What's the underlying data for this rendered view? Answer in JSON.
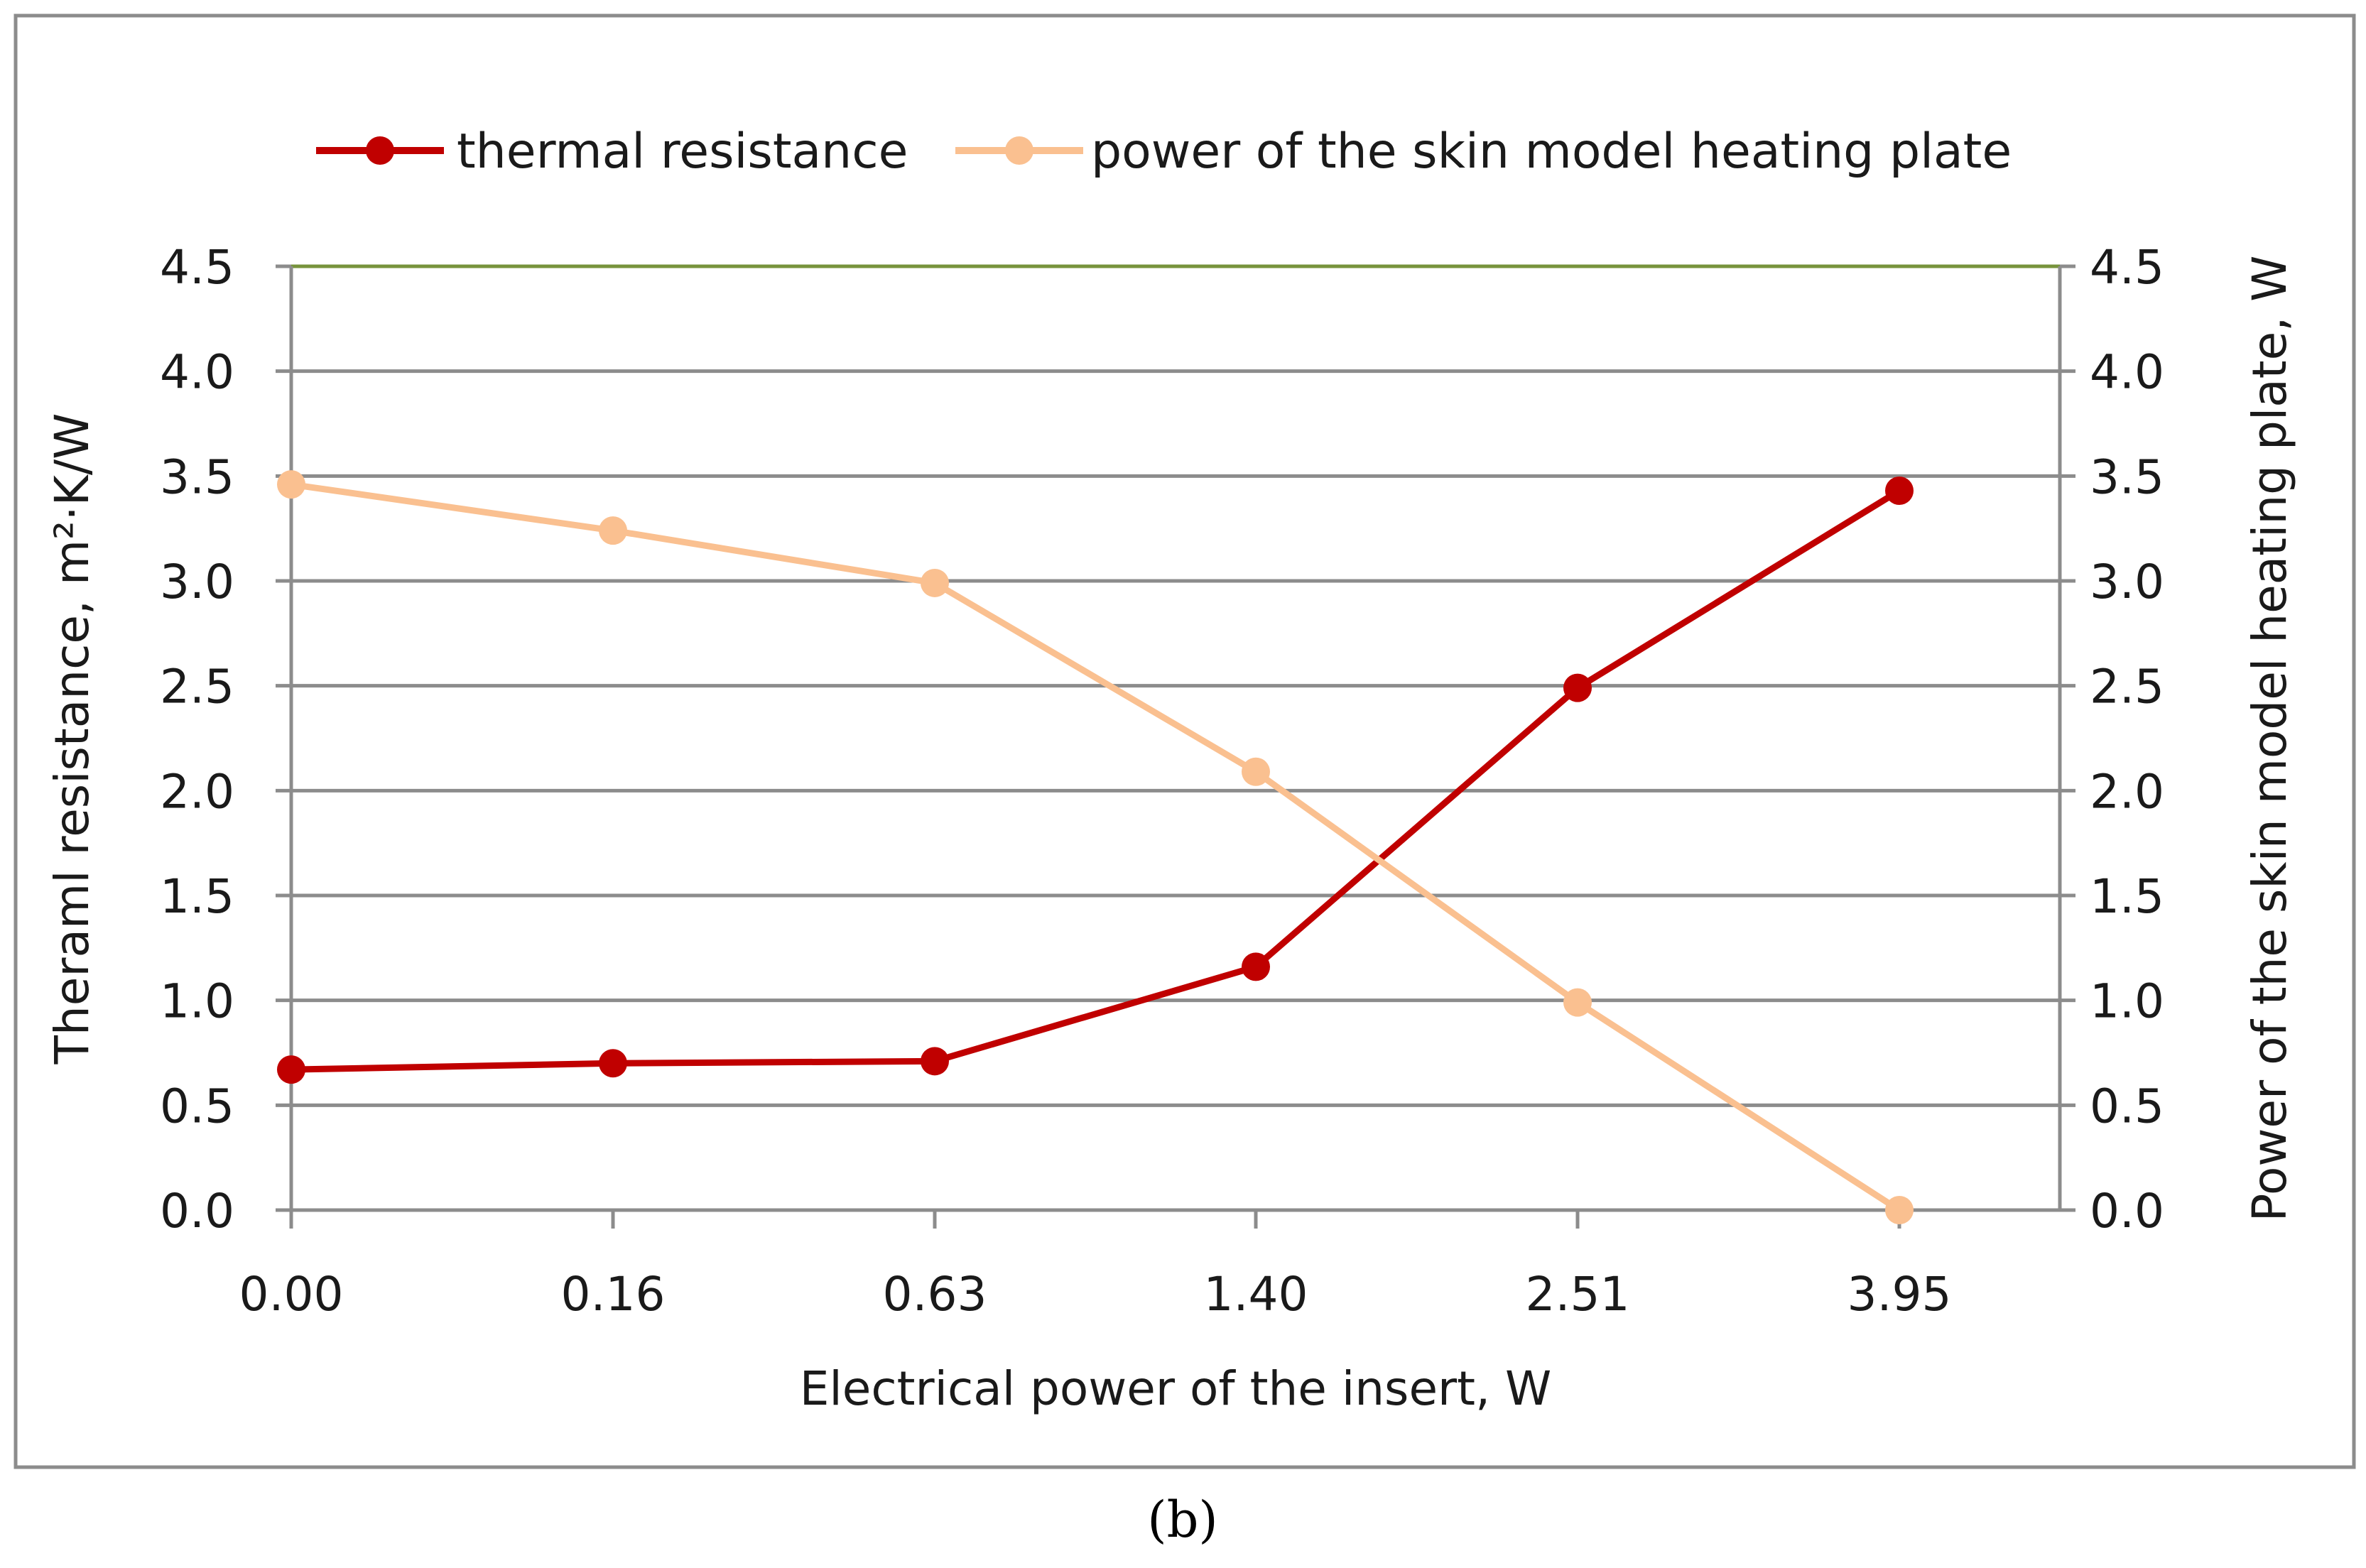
{
  "chart_data": {
    "type": "line",
    "categories": [
      "0.00",
      "0.16",
      "0.63",
      "1.40",
      "2.51",
      "3.95"
    ],
    "xlabel": "Electrical power of the insert, W",
    "ylabel_left": "Theraml resistance, m²·K/W",
    "ylabel_right": "Power of the skin model heating plate, W",
    "ylim_left": [
      0,
      4.5
    ],
    "ylim_right": [
      0,
      4.5
    ],
    "yticks": [
      "0.0",
      "0.5",
      "1.0",
      "1.5",
      "2.0",
      "2.5",
      "3.0",
      "3.5",
      "4.0",
      "4.5"
    ],
    "grid": true,
    "legend_position": "top",
    "series": [
      {
        "name": "thermal resistance",
        "axis": "left",
        "color": "#c00000",
        "values": [
          0.67,
          0.7,
          0.71,
          1.16,
          2.49,
          3.43
        ]
      },
      {
        "name": "power of the skin model heating plate",
        "axis": "right",
        "color": "#fac090",
        "values": [
          3.46,
          3.24,
          2.99,
          2.09,
          0.99,
          0.0
        ]
      }
    ],
    "caption": "(b)",
    "colors": {
      "grid": "#8c8c8c",
      "top_line": "#77933c",
      "frame": "#8c8c8c"
    }
  }
}
